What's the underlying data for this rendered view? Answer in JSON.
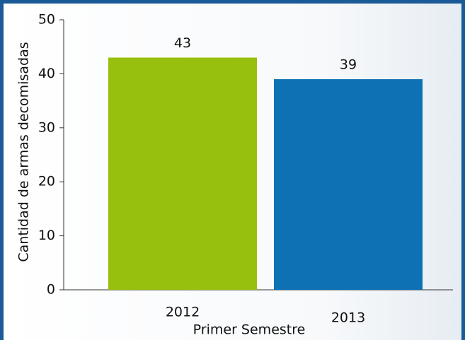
{
  "chart_data": {
    "type": "bar",
    "categories": [
      "2012",
      "2013"
    ],
    "values": [
      43,
      39
    ],
    "colors": [
      "#97bf0d",
      "#0e71b4"
    ],
    "xlabel": "Primer Semestre",
    "ylabel": "Cantidad de armas decomisadas",
    "ylim": [
      0,
      50
    ],
    "yticks": [
      0,
      10,
      20,
      30,
      40,
      50
    ]
  }
}
